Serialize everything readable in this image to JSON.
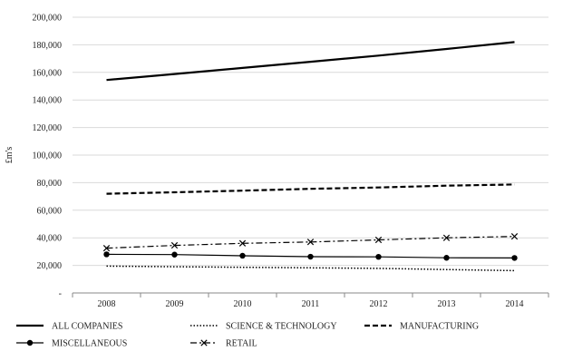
{
  "chart_data": {
    "type": "line",
    "title": "",
    "xlabel": "",
    "ylabel": "£m's",
    "categories": [
      "2008",
      "2009",
      "2010",
      "2011",
      "2012",
      "2013",
      "2014"
    ],
    "ylim": [
      0,
      200000
    ],
    "yticks": [
      0,
      20000,
      40000,
      60000,
      80000,
      100000,
      120000,
      140000,
      160000,
      180000,
      200000
    ],
    "ytick_labels": [
      "-",
      "20,000",
      "40,000",
      "60,000",
      "80,000",
      "100,000",
      "120,000",
      "140,000",
      "160,000",
      "180,000",
      "200,000"
    ],
    "grid": true,
    "legend_position": "bottom",
    "series": [
      {
        "name": "ALL COMPANIES",
        "style": "solid-thick",
        "marker": "none",
        "values": [
          154500,
          158800,
          163200,
          167700,
          172200,
          177000,
          182000
        ]
      },
      {
        "name": "SCIENCE & TECHNOLOGY",
        "style": "dotted",
        "marker": "none",
        "values": [
          19500,
          19000,
          18600,
          18200,
          17800,
          17000,
          16200
        ]
      },
      {
        "name": "MANUFACTURING",
        "style": "dashed",
        "marker": "none",
        "values": [
          72000,
          73000,
          74200,
          75500,
          76500,
          77800,
          78700
        ]
      },
      {
        "name": "MISCELLANEOUS",
        "style": "solid",
        "marker": "circle",
        "values": [
          28000,
          27800,
          27000,
          26300,
          26200,
          25500,
          25400
        ]
      },
      {
        "name": "RETAIL",
        "style": "dashdot",
        "marker": "x",
        "values": [
          32500,
          34500,
          36000,
          37000,
          38500,
          40000,
          41000
        ]
      }
    ],
    "colors": {
      "line": "#000000",
      "grid": "#d9d9d9",
      "axis": "#888888"
    }
  }
}
